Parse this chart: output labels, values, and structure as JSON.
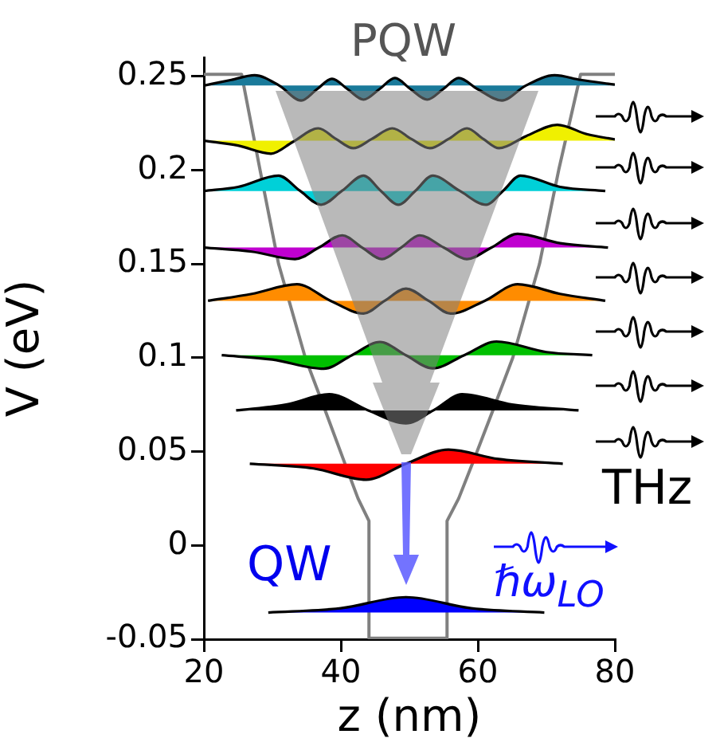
{
  "chart_data": {
    "type": "line",
    "title": "PQW",
    "xlabel": "z (nm)",
    "ylabel": "V (eV)",
    "xlim": [
      20,
      80
    ],
    "xticks": [
      20,
      40,
      60,
      80
    ],
    "ylim": [
      -0.05,
      0.26
    ],
    "yticks": [
      -0.05,
      0,
      0.05,
      0.1,
      0.15,
      0.2,
      0.25
    ],
    "grid": false,
    "legend": false,
    "marker": "none",
    "annotations": [
      "THz",
      "QW",
      "ℏω$_{LO}$"
    ],
    "series": [
      {
        "type": "line",
        "color": "#808080",
        "x": [
          20,
          25.5,
          28.2,
          30.9,
          34.8,
          37.7,
          40.6,
          42.5,
          44.1,
          44.1,
          55.5,
          55.5,
          57.2,
          59.2,
          62.2,
          65.1,
          69,
          71.8,
          75,
          80
        ],
        "values": [
          0.251,
          0.251,
          0.2,
          0.15,
          0.1,
          0.072,
          0.0435,
          0.025,
          0.013,
          -0.0495,
          -0.0495,
          0.013,
          0.025,
          0.0435,
          0.072,
          0.1,
          0.15,
          0.2,
          0.251,
          0.251
        ]
      },
      {
        "type": "area",
        "color": "#1a7a9a",
        "x": [
          20,
          24,
          27.4,
          31,
          34.2,
          36.5,
          38.7,
          41,
          43.3,
          45.6,
          47.9,
          50.2,
          52.6,
          54.9,
          57.2,
          60,
          63.5,
          67,
          71.2,
          75,
          80
        ],
        "values": [
          0.245,
          0.248,
          0.2505,
          0.245,
          0.237,
          0.243,
          0.2486,
          0.243,
          0.2375,
          0.243,
          0.249,
          0.243,
          0.2375,
          0.243,
          0.249,
          0.243,
          0.237,
          0.245,
          0.2505,
          0.248,
          0.2455
        ]
      },
      {
        "type": "area",
        "color": "#f0f000",
        "x": [
          20,
          25,
          29.8,
          33,
          36.7,
          39.3,
          41.8,
          44.5,
          47.5,
          50.3,
          53,
          55.7,
          58.4,
          60.8,
          63.1,
          67,
          71.6,
          76,
          80
        ],
        "values": [
          0.2156,
          0.213,
          0.2087,
          0.215,
          0.2222,
          0.2165,
          0.2116,
          0.2165,
          0.2222,
          0.2165,
          0.2116,
          0.2165,
          0.2222,
          0.2165,
          0.2116,
          0.218,
          0.2241,
          0.219,
          0.2163
        ]
      },
      {
        "type": "area",
        "color": "#00d0d8",
        "x": [
          20,
          25,
          30.9,
          34,
          37.1,
          40.2,
          43.3,
          45.8,
          48.4,
          50.9,
          53.4,
          57.3,
          61.2,
          63.7,
          66.2,
          72,
          78.6
        ],
        "values": [
          0.1888,
          0.191,
          0.197,
          0.189,
          0.1815,
          0.189,
          0.197,
          0.189,
          0.1815,
          0.189,
          0.197,
          0.189,
          0.1815,
          0.189,
          0.197,
          0.191,
          0.1888
        ]
      },
      {
        "type": "area",
        "color": "#c000d0",
        "x": [
          20,
          27,
          33.3,
          36.8,
          40.2,
          43.1,
          46,
          48.8,
          51.5,
          55,
          58.4,
          62,
          65.8,
          72,
          79
        ],
        "values": [
          0.1587,
          0.1565,
          0.1525,
          0.1587,
          0.1652,
          0.1587,
          0.1525,
          0.1587,
          0.1652,
          0.1587,
          0.1525,
          0.1587,
          0.166,
          0.161,
          0.1587
        ]
      },
      {
        "type": "area",
        "color": "#ff8c00",
        "x": [
          20.6,
          27,
          33.6,
          38.5,
          43.3,
          46.4,
          49.5,
          52.8,
          56,
          61,
          65.8,
          72,
          78.6
        ],
        "values": [
          0.1303,
          0.134,
          0.1391,
          0.1303,
          0.1235,
          0.1303,
          0.1368,
          0.1303,
          0.1235,
          0.1303,
          0.1391,
          0.134,
          0.1303
        ]
      },
      {
        "type": "area",
        "color": "#00c000",
        "x": [
          22.6,
          30,
          37.5,
          41.6,
          45.7,
          49.5,
          53.4,
          58,
          62.7,
          70,
          76.7
        ],
        "values": [
          0.1013,
          0.099,
          0.0941,
          0.1013,
          0.1084,
          0.1013,
          0.0943,
          0.1013,
          0.1086,
          0.103,
          0.1013
        ]
      },
      {
        "type": "area",
        "color": "#000000",
        "x": [
          24.7,
          32,
          38.3,
          44,
          49.5,
          53.5,
          57.7,
          65,
          74.7
        ],
        "values": [
          0.0719,
          0.075,
          0.0805,
          0.0719,
          0.065,
          0.0719,
          0.0805,
          0.075,
          0.0719
        ]
      },
      {
        "type": "area",
        "color": "#ff0000",
        "x": [
          26.7,
          36,
          43.7,
          49.5,
          55.7,
          63,
          72.4
        ],
        "values": [
          0.0435,
          0.041,
          0.035,
          0.0435,
          0.051,
          0.046,
          0.0435
        ]
      },
      {
        "type": "area",
        "color": "#0000ff",
        "x": [
          29.4,
          40,
          49.5,
          59,
          69.7
        ],
        "values": [
          -0.0358,
          -0.0335,
          -0.0276,
          -0.0335,
          -0.0358
        ]
      }
    ]
  }
}
